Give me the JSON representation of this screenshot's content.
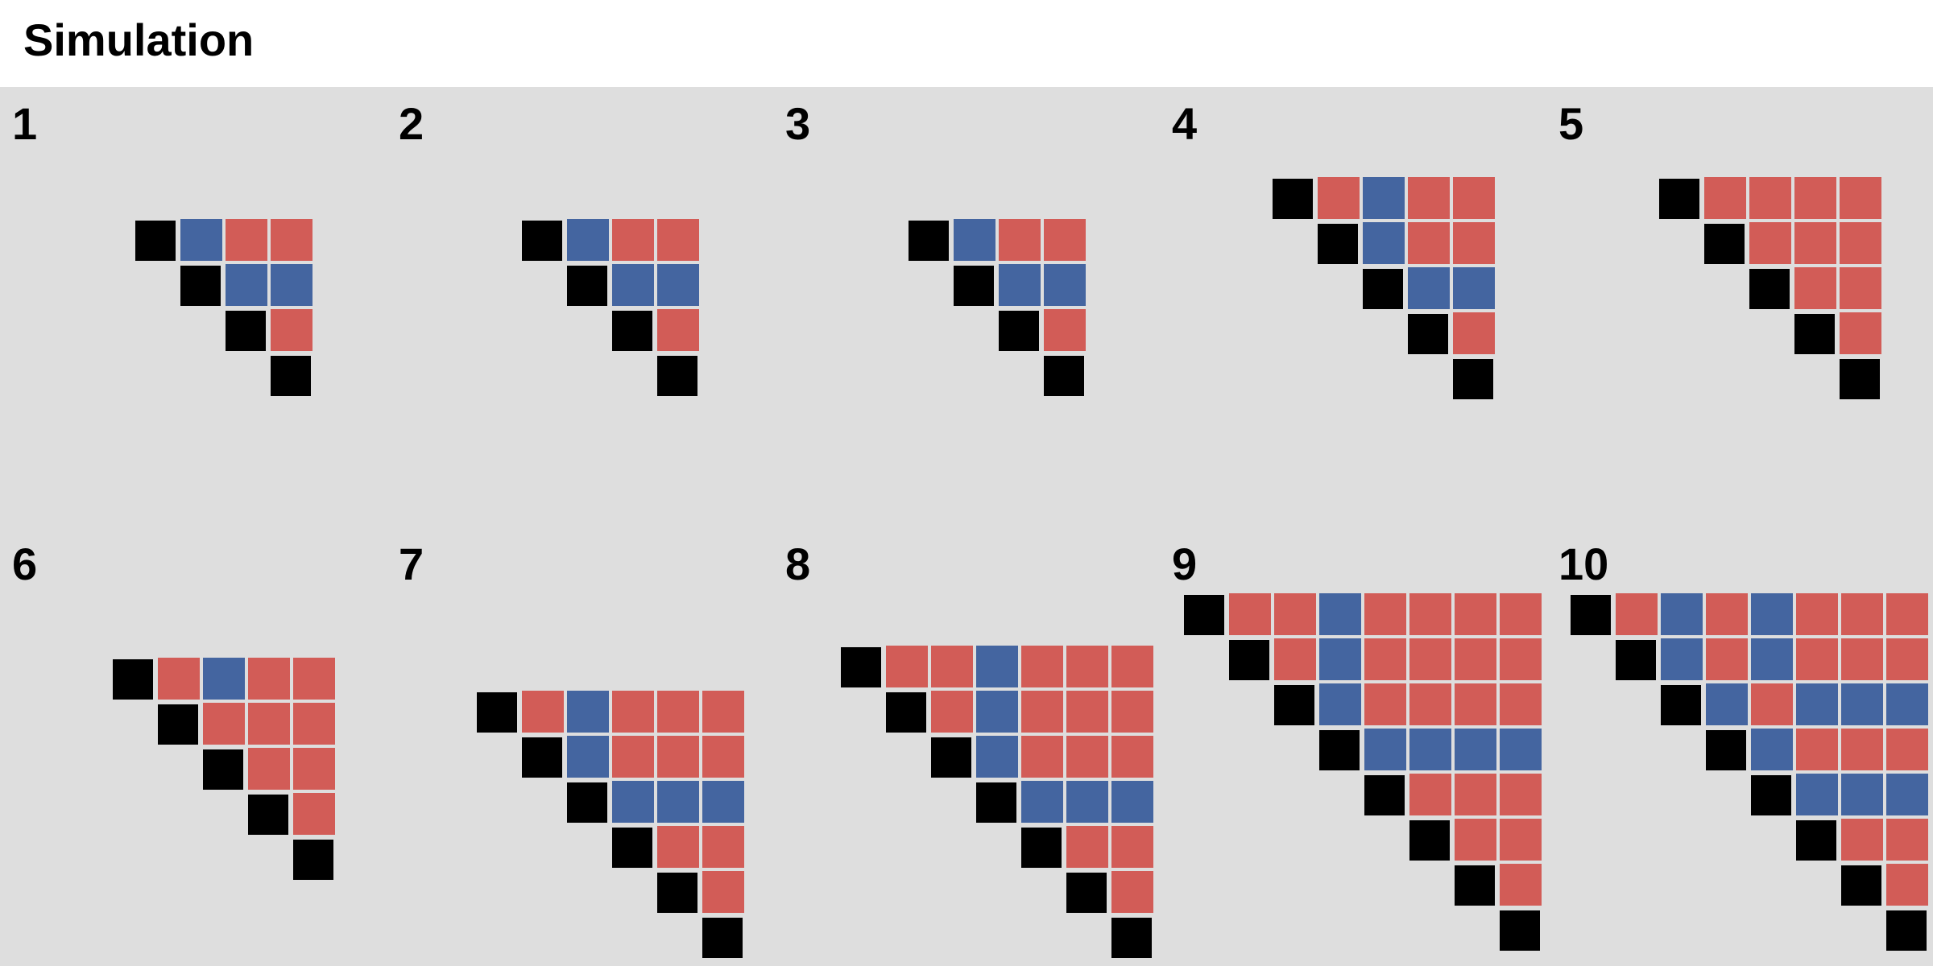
{
  "title": "Simulation",
  "colors": {
    "background": "#dedede",
    "diagonal": "#000000",
    "red": "#d25c57",
    "blue": "#4465a0"
  },
  "panels": [
    {
      "label": "1",
      "rows": [
        "dBRR",
        "dBB",
        "dR",
        "d"
      ]
    },
    {
      "label": "2",
      "rows": [
        "dBRR",
        "dBB",
        "dR",
        "d"
      ]
    },
    {
      "label": "3",
      "rows": [
        "dBRR",
        "dBB",
        "dR",
        "d"
      ]
    },
    {
      "label": "4",
      "rows": [
        "dRBRR",
        "dBRR",
        "dBB",
        "dR",
        "d"
      ]
    },
    {
      "label": "5",
      "rows": [
        "dRRRR",
        "dRRR",
        "dRR",
        "dR",
        "d"
      ]
    },
    {
      "label": "6",
      "rows": [
        "dRBRR",
        "dRRR",
        "dRR",
        "dR",
        "d"
      ]
    },
    {
      "label": "7",
      "rows": [
        "dRBRRR",
        "dBRRR",
        "dBBB",
        "dRR",
        "dR",
        "d"
      ]
    },
    {
      "label": "8",
      "rows": [
        "dRRBRRR",
        "dRBRRR",
        "dBRRR",
        "dBBB",
        "dRR",
        "dR",
        "d"
      ]
    },
    {
      "label": "9",
      "rows": [
        "dRRBRRRR",
        "dRBRRRR",
        "dBRRRR",
        "dBBBB",
        "dRRR",
        "dRR",
        "dR",
        "d"
      ]
    },
    {
      "label": "10",
      "rows": [
        "dRBRBRRR",
        "dBRBRRR",
        "dBRBBB",
        "dBRRR",
        "dBBB",
        "dRR",
        "dR",
        "d"
      ]
    }
  ]
}
